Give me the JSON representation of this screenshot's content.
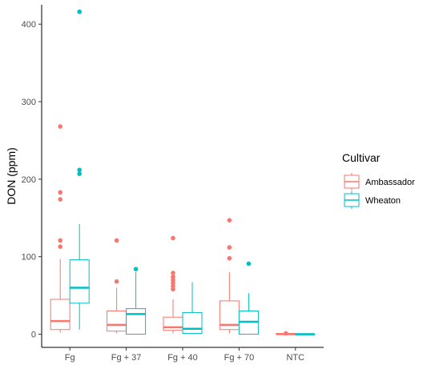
{
  "chart_data": {
    "type": "boxplot",
    "title": "",
    "xlabel": "",
    "ylabel": "DON (ppm)",
    "ylim": [
      -17,
      425
    ],
    "y_ticks": [
      0,
      100,
      200,
      300,
      400
    ],
    "categories": [
      "Fg",
      "Fg + 37",
      "Fg + 40",
      "Fg + 70",
      "NTC"
    ],
    "grid": false,
    "legend": {
      "title": "Cultivar",
      "position": "right",
      "entries": [
        "Ambassador",
        "Wheaton"
      ]
    },
    "series": [
      {
        "name": "Ambassador",
        "color": "#F8766D",
        "boxes": [
          {
            "category": "Fg",
            "min": 2,
            "q1": 6,
            "median": 17,
            "q3": 45,
            "max": 97,
            "outliers": [
              113,
              121,
              174,
              183,
              268
            ]
          },
          {
            "category": "Fg + 37",
            "min": 1,
            "q1": 4,
            "median": 12,
            "q3": 30,
            "max": 60,
            "outliers": [
              68,
              121
            ]
          },
          {
            "category": "Fg + 40",
            "min": 1,
            "q1": 5,
            "median": 9,
            "q3": 22,
            "max": 45,
            "outliers": [
              58,
              62,
              66,
              70,
              74,
              79,
              124
            ]
          },
          {
            "category": "Fg + 70",
            "min": 1,
            "q1": 6,
            "median": 12,
            "q3": 43,
            "max": 80,
            "outliers": [
              98,
              112,
              147
            ]
          },
          {
            "category": "NTC",
            "min": 0,
            "q1": 0,
            "median": 0,
            "q3": 1,
            "max": 1,
            "outliers": [
              1
            ]
          }
        ]
      },
      {
        "name": "Wheaton",
        "color": "#00BFC4",
        "boxes": [
          {
            "category": "Fg",
            "min": 6,
            "q1": 40,
            "median": 60,
            "q3": 96,
            "max": 142,
            "outliers": [
              207,
              212,
              416
            ]
          },
          {
            "category": "Fg + 37",
            "min": 0,
            "q1": 0,
            "median": 26,
            "q3": 33,
            "max": 80,
            "outliers": [
              84
            ]
          },
          {
            "category": "Fg + 40",
            "min": 0,
            "q1": 1,
            "median": 7,
            "q3": 28,
            "max": 67,
            "outliers": []
          },
          {
            "category": "Fg + 70",
            "min": 0,
            "q1": 0,
            "median": 16,
            "q3": 30,
            "max": 53,
            "outliers": [
              91
            ]
          },
          {
            "category": "NTC",
            "min": 0,
            "q1": 0,
            "median": 0,
            "q3": 0,
            "max": 0,
            "outliers": []
          }
        ]
      }
    ]
  }
}
